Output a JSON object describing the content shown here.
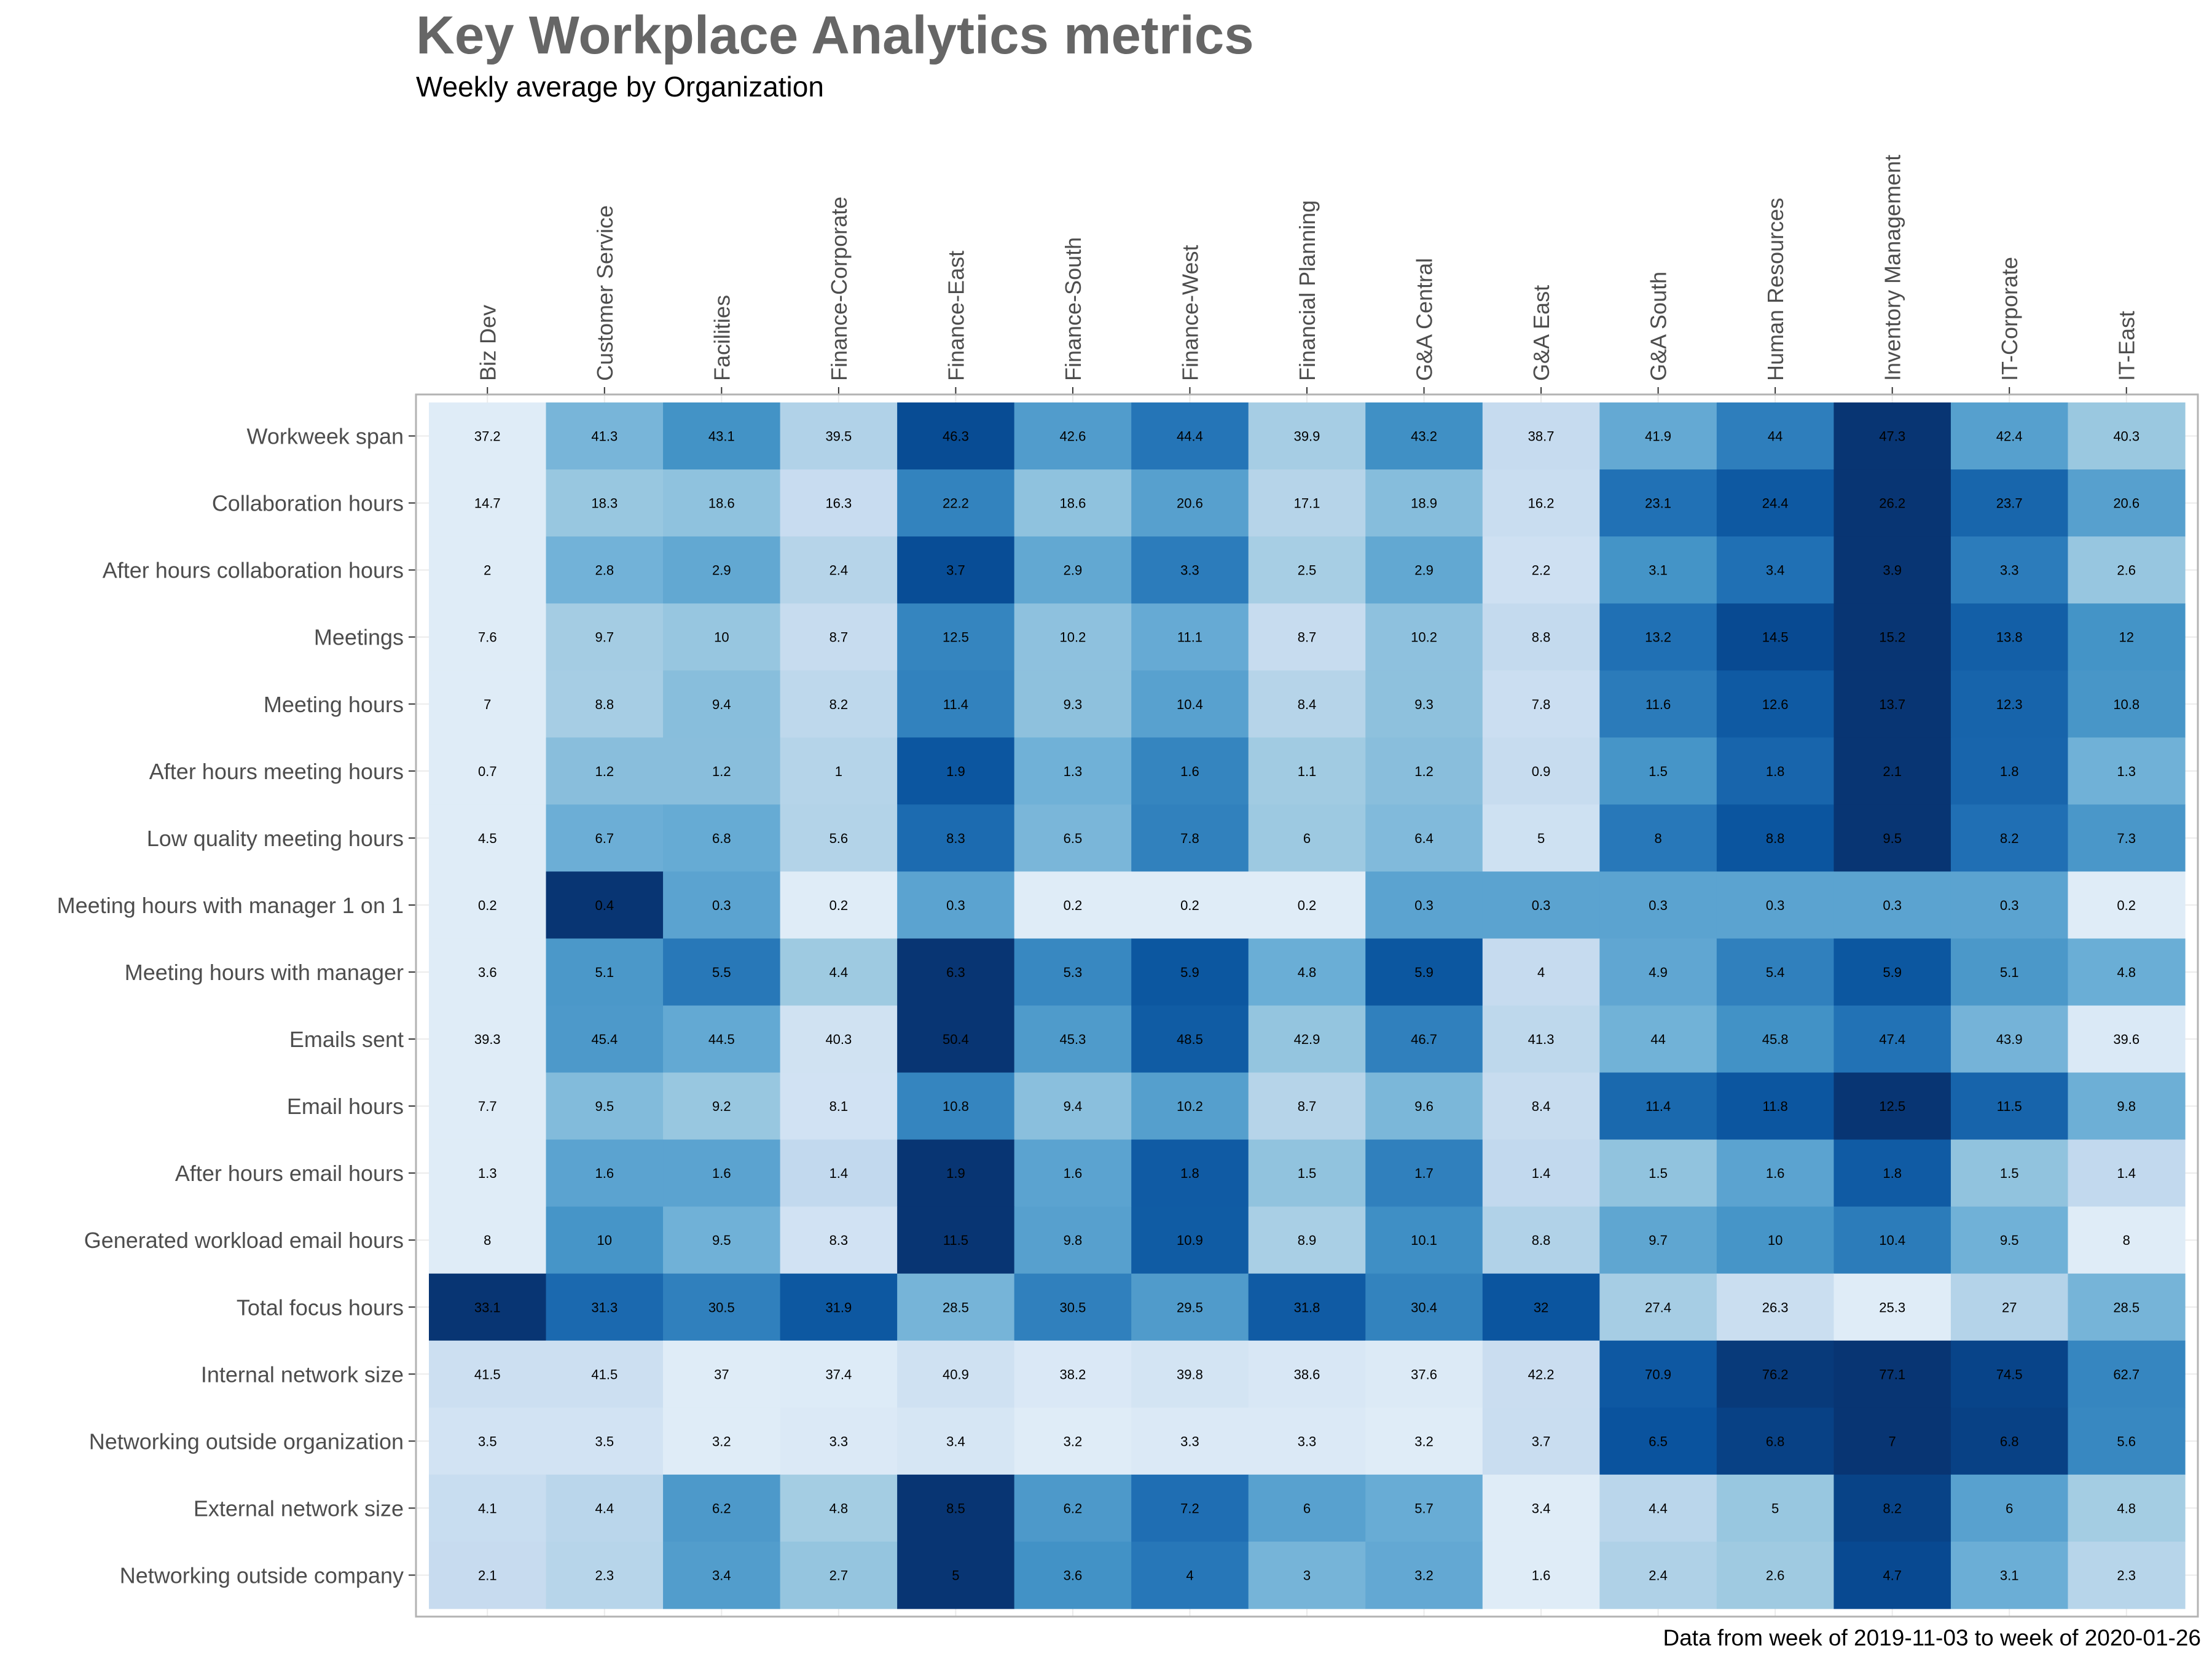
{
  "chart_data": {
    "type": "heatmap",
    "title": "Key Workplace Analytics metrics",
    "subtitle": "Weekly average by Organization",
    "caption": "Data from week of 2019-11-03 to week of 2020-01-26",
    "color_scale": {
      "low": "#f7fbff",
      "high": "#08306b",
      "scaling": "per-row"
    },
    "columns": [
      "Biz Dev",
      "Customer Service",
      "Facilities",
      "Finance-Corporate",
      "Finance-East",
      "Finance-South",
      "Finance-West",
      "Financial Planning",
      "G&A Central",
      "G&A East",
      "G&A South",
      "Human Resources",
      "Inventory Management",
      "IT-Corporate",
      "IT-East"
    ],
    "rows": [
      {
        "name": "Workweek span",
        "values": [
          37.2,
          41.3,
          43.1,
          39.5,
          46.3,
          42.6,
          44.4,
          39.9,
          43.2,
          38.7,
          41.9,
          44,
          47.3,
          42.4,
          40.3
        ]
      },
      {
        "name": "Collaboration hours",
        "values": [
          14.7,
          18.3,
          18.6,
          16.3,
          22.2,
          18.6,
          20.6,
          17.1,
          18.9,
          16.2,
          23.1,
          24.4,
          26.2,
          23.7,
          20.6
        ]
      },
      {
        "name": "After hours collaboration hours",
        "values": [
          2,
          2.8,
          2.9,
          2.4,
          3.7,
          2.9,
          3.3,
          2.5,
          2.9,
          2.2,
          3.1,
          3.4,
          3.9,
          3.3,
          2.6
        ]
      },
      {
        "name": "Meetings",
        "values": [
          7.6,
          9.7,
          10,
          8.7,
          12.5,
          10.2,
          11.1,
          8.7,
          10.2,
          8.8,
          13.2,
          14.5,
          15.2,
          13.8,
          12
        ]
      },
      {
        "name": "Meeting hours",
        "values": [
          7,
          8.8,
          9.4,
          8.2,
          11.4,
          9.3,
          10.4,
          8.4,
          9.3,
          7.8,
          11.6,
          12.6,
          13.7,
          12.3,
          10.8
        ]
      },
      {
        "name": "After hours meeting hours",
        "values": [
          0.7,
          1.2,
          1.2,
          1,
          1.9,
          1.3,
          1.6,
          1.1,
          1.2,
          0.9,
          1.5,
          1.8,
          2.1,
          1.8,
          1.3
        ]
      },
      {
        "name": "Low quality meeting hours",
        "values": [
          4.5,
          6.7,
          6.8,
          5.6,
          8.3,
          6.5,
          7.8,
          6,
          6.4,
          5,
          8,
          8.8,
          9.5,
          8.2,
          7.3
        ]
      },
      {
        "name": "Meeting hours with manager 1 on 1",
        "values": [
          0.2,
          0.4,
          0.3,
          0.2,
          0.3,
          0.2,
          0.2,
          0.2,
          0.3,
          0.3,
          0.3,
          0.3,
          0.3,
          0.3,
          0.2
        ]
      },
      {
        "name": "Meeting hours with manager",
        "values": [
          3.6,
          5.1,
          5.5,
          4.4,
          6.3,
          5.3,
          5.9,
          4.8,
          5.9,
          4,
          4.9,
          5.4,
          5.9,
          5.1,
          4.8
        ]
      },
      {
        "name": "Emails sent",
        "values": [
          39.3,
          45.4,
          44.5,
          40.3,
          50.4,
          45.3,
          48.5,
          42.9,
          46.7,
          41.3,
          44,
          45.8,
          47.4,
          43.9,
          39.6
        ]
      },
      {
        "name": "Email hours",
        "values": [
          7.7,
          9.5,
          9.2,
          8.1,
          10.8,
          9.4,
          10.2,
          8.7,
          9.6,
          8.4,
          11.4,
          11.8,
          12.5,
          11.5,
          9.8
        ]
      },
      {
        "name": "After hours email hours",
        "values": [
          1.3,
          1.6,
          1.6,
          1.4,
          1.9,
          1.6,
          1.8,
          1.5,
          1.7,
          1.4,
          1.5,
          1.6,
          1.8,
          1.5,
          1.4
        ]
      },
      {
        "name": "Generated workload email hours",
        "values": [
          8,
          10,
          9.5,
          8.3,
          11.5,
          9.8,
          10.9,
          8.9,
          10.1,
          8.8,
          9.7,
          10,
          10.4,
          9.5,
          8
        ]
      },
      {
        "name": "Total focus hours",
        "values": [
          33.1,
          31.3,
          30.5,
          31.9,
          28.5,
          30.5,
          29.5,
          31.8,
          30.4,
          32,
          27.4,
          26.3,
          25.3,
          27,
          28.5
        ]
      },
      {
        "name": "Internal network size",
        "values": [
          41.5,
          41.5,
          37,
          37.4,
          40.9,
          38.2,
          39.8,
          38.6,
          37.6,
          42.2,
          70.9,
          76.2,
          77.1,
          74.5,
          62.7
        ]
      },
      {
        "name": "Networking outside organization",
        "values": [
          3.5,
          3.5,
          3.2,
          3.3,
          3.4,
          3.2,
          3.3,
          3.3,
          3.2,
          3.7,
          6.5,
          6.8,
          7,
          6.8,
          5.6
        ]
      },
      {
        "name": "External network size",
        "values": [
          4.1,
          4.4,
          6.2,
          4.8,
          8.5,
          6.2,
          7.2,
          6,
          5.7,
          3.4,
          4.4,
          5,
          8.2,
          6,
          4.8
        ]
      },
      {
        "name": "Networking outside company",
        "values": [
          2.1,
          2.3,
          3.4,
          2.7,
          5,
          3.6,
          4,
          3,
          3.2,
          1.6,
          2.4,
          2.6,
          4.7,
          3.1,
          2.3
        ]
      }
    ]
  }
}
